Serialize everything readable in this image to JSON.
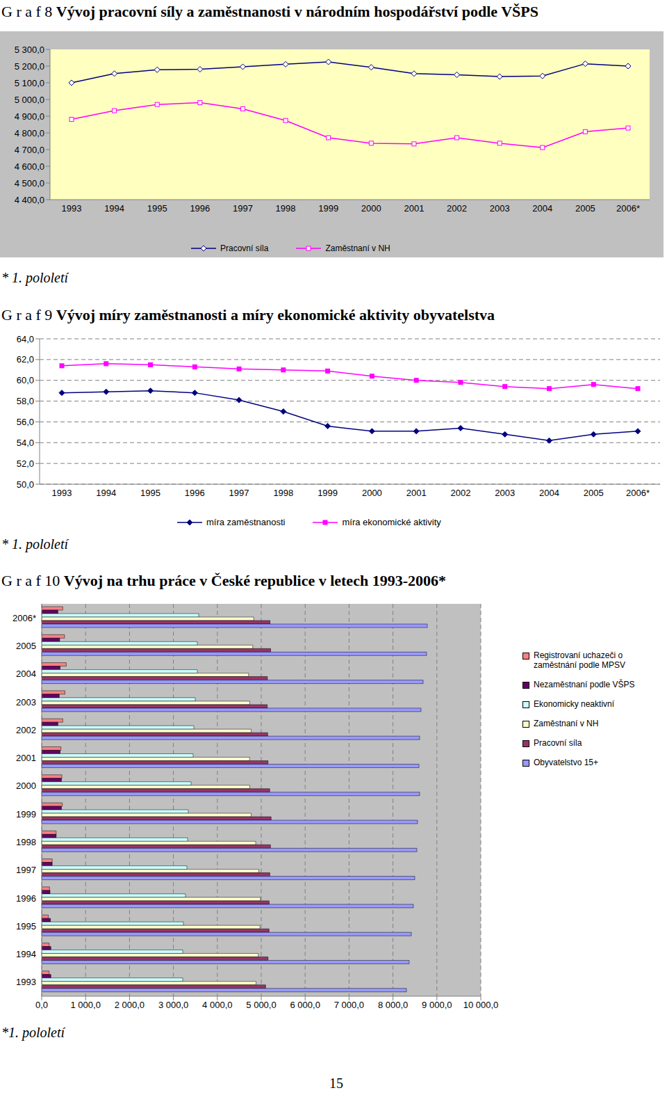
{
  "page_number": "15",
  "chart_data": [
    {
      "type": "line",
      "label": "G r a f 8",
      "title": "Vývoj pracovní síly a zaměstnanosti v národním hospodářství podle VŠPS",
      "note": "* 1. pololetí",
      "categories": [
        "1993",
        "1994",
        "1995",
        "1996",
        "1997",
        "1998",
        "1999",
        "2000",
        "2001",
        "2002",
        "2003",
        "2004",
        "2005",
        "2006*"
      ],
      "series": [
        {
          "name": "Pracovní síla",
          "color": "#000080",
          "marker": "diamond_open",
          "values": [
            5100,
            5155,
            5178,
            5181,
            5196,
            5211,
            5225,
            5193,
            5155,
            5148,
            5137,
            5141,
            5214,
            5200
          ]
        },
        {
          "name": "Zaměstnaní v NH",
          "color": "#FF00FF",
          "marker": "square_open",
          "values": [
            4881,
            4933,
            4970,
            4981,
            4944,
            4874,
            4771,
            4738,
            4734,
            4771,
            4738,
            4712,
            4807,
            4829
          ]
        }
      ],
      "ylim": [
        4400,
        5300
      ],
      "yticks": [
        {
          "value": 4400,
          "label": "4 400,0"
        },
        {
          "value": 4500,
          "label": "4 500,0"
        },
        {
          "value": 4600,
          "label": "4 600,0"
        },
        {
          "value": 4700,
          "label": "4 700,0"
        },
        {
          "value": 4800,
          "label": "4 800,0"
        },
        {
          "value": 4900,
          "label": "4 900,0"
        },
        {
          "value": 5000,
          "label": "5 000,0"
        },
        {
          "value": 5100,
          "label": "5 100,0"
        },
        {
          "value": 5200,
          "label": "5 200,0"
        },
        {
          "value": 5300,
          "label": "5 300,0"
        }
      ],
      "grid": false
    },
    {
      "type": "line",
      "label": "G r a f 9",
      "title": "Vývoj míry zaměstnanosti a míry ekonomické aktivity obyvatelstva",
      "note": "* 1. pololetí",
      "categories": [
        "1993",
        "1994",
        "1995",
        "1996",
        "1997",
        "1998",
        "1999",
        "2000",
        "2001",
        "2002",
        "2003",
        "2004",
        "2005",
        "2006*"
      ],
      "series": [
        {
          "name": "míra zaměstnanosti",
          "color": "#000080",
          "marker": "diamond",
          "values": [
            58.8,
            58.9,
            59.0,
            58.8,
            58.1,
            57.0,
            55.6,
            55.1,
            55.1,
            55.4,
            54.8,
            54.2,
            54.8,
            55.1
          ]
        },
        {
          "name": "míra ekonomické aktivity",
          "color": "#FF00FF",
          "marker": "square",
          "values": [
            61.4,
            61.6,
            61.5,
            61.3,
            61.1,
            61.0,
            60.9,
            60.4,
            60.0,
            59.8,
            59.4,
            59.2,
            59.6,
            59.2
          ]
        }
      ],
      "ylim": [
        50,
        64
      ],
      "yticks": [
        {
          "value": 50,
          "label": "50,0"
        },
        {
          "value": 52,
          "label": "52,0"
        },
        {
          "value": 54,
          "label": "54,0"
        },
        {
          "value": 56,
          "label": "56,0"
        },
        {
          "value": 58,
          "label": "58,0"
        },
        {
          "value": 60,
          "label": "60,0"
        },
        {
          "value": 62,
          "label": "62,0"
        },
        {
          "value": 64,
          "label": "64,0"
        }
      ],
      "grid": true
    },
    {
      "type": "bar",
      "orientation": "horizontal",
      "label": "G r a f 10",
      "title": "Vývoj na trhu práce v České republice v letech 1993-2006*",
      "note": "*1. pololetí",
      "categories": [
        "2006*",
        "2005",
        "2004",
        "2003",
        "2002",
        "2001",
        "2000",
        "1999",
        "1998",
        "1997",
        "1996",
        "1995",
        "1994",
        "1993"
      ],
      "series": [
        {
          "name": "Registrovaní uchazeči o zaměstnání podle MPSV",
          "color": "#FF8080",
          "values": [
            480,
            520,
            560,
            530,
            480,
            440,
            460,
            470,
            330,
            240,
            180,
            150,
            170,
            170
          ]
        },
        {
          "name": "Nezaměstnaní podle VŠPS",
          "color": "#660066",
          "values": [
            370,
            410,
            420,
            400,
            370,
            420,
            450,
            450,
            330,
            240,
            190,
            200,
            210,
            210
          ]
        },
        {
          "name": "Ekonomicky neaktivní",
          "color": "#CCFFFF",
          "values": [
            3576,
            3544,
            3544,
            3497,
            3465,
            3449,
            3402,
            3339,
            3323,
            3307,
            3275,
            3228,
            3212,
            3212
          ]
        },
        {
          "name": "Zaměstnaní v NH",
          "color": "#FFFFCC",
          "values": [
            4829,
            4807,
            4712,
            4738,
            4771,
            4734,
            4738,
            4771,
            4874,
            4944,
            4981,
            4970,
            4933,
            4881
          ]
        },
        {
          "name": "Pracovní síla",
          "color": "#993366",
          "values": [
            5200,
            5214,
            5141,
            5137,
            5148,
            5155,
            5193,
            5225,
            5211,
            5196,
            5181,
            5178,
            5155,
            5100
          ]
        },
        {
          "name": "Obyvatelstvo 15+",
          "color": "#9999FF",
          "values": [
            8782,
            8766,
            8687,
            8639,
            8608,
            8592,
            8608,
            8560,
            8544,
            8497,
            8465,
            8418,
            8370,
            8307
          ]
        }
      ],
      "xlim": [
        0,
        10000
      ],
      "xticks": [
        {
          "value": 0,
          "label": "0,0"
        },
        {
          "value": 1000,
          "label": "1 000,0"
        },
        {
          "value": 2000,
          "label": "2 000,0"
        },
        {
          "value": 3000,
          "label": "3 000,0"
        },
        {
          "value": 4000,
          "label": "4 000,0"
        },
        {
          "value": 5000,
          "label": "5 000,0"
        },
        {
          "value": 6000,
          "label": "6 000,0"
        },
        {
          "value": 7000,
          "label": "7 000,0"
        },
        {
          "value": 8000,
          "label": "8 000,0"
        },
        {
          "value": 9000,
          "label": "9 000,0"
        },
        {
          "value": 10000,
          "label": "10 000,0"
        }
      ],
      "grid": true
    }
  ]
}
